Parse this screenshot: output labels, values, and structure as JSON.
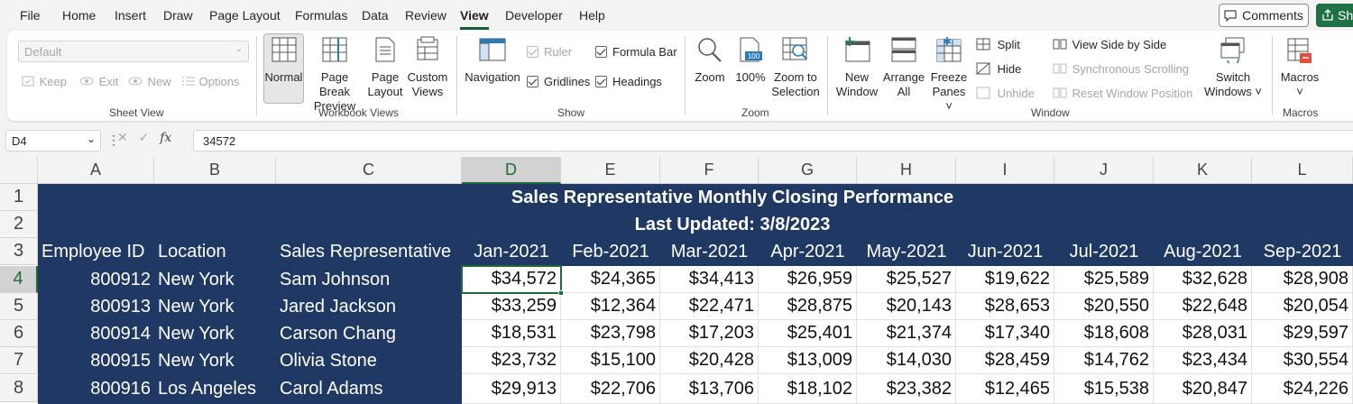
{
  "menu": {
    "items": [
      "File",
      "Home",
      "Insert",
      "Draw",
      "Page Layout",
      "Formulas",
      "Data",
      "Review",
      "View",
      "Developer",
      "Help"
    ],
    "active": "View",
    "comments_label": "Comments",
    "share_label": "Sh"
  },
  "ribbon": {
    "sheet_view": {
      "dropdown_value": "Default",
      "keep": "Keep",
      "exit": "Exit",
      "new": "New",
      "options": "Options",
      "label": "Sheet View"
    },
    "workbook_views": {
      "normal": "Normal",
      "page_break_1": "Page Break",
      "page_break_2": "Preview",
      "page_layout_1": "Page",
      "page_layout_2": "Layout",
      "custom_1": "Custom",
      "custom_2": "Views",
      "label": "Workbook Views"
    },
    "show": {
      "navigation": "Navigation",
      "ruler": "Ruler",
      "formula_bar": "Formula Bar",
      "gridlines": "Gridlines",
      "headings": "Headings",
      "label": "Show"
    },
    "zoom": {
      "zoom": "Zoom",
      "hundred": "100%",
      "hundred_icon": "100",
      "zoom_sel_1": "Zoom to",
      "zoom_sel_2": "Selection",
      "label": "Zoom"
    },
    "window": {
      "new_window_1": "New",
      "new_window_2": "Window",
      "arrange_1": "Arrange",
      "arrange_2": "All",
      "freeze_1": "Freeze",
      "freeze_2": "Panes ˅",
      "split": "Split",
      "hide": "Hide",
      "unhide": "Unhide",
      "side_by_side": "View Side by Side",
      "sync_scroll": "Synchronous Scrolling",
      "reset_pos": "Reset Window Position",
      "switch_1": "Switch",
      "switch_2": "Windows ˅",
      "label": "Window"
    },
    "macros": {
      "macros_1": "Macros",
      "macros_2": "˅",
      "label": "Macros"
    }
  },
  "formula_bar": {
    "name_box": "D4",
    "value": "34572"
  },
  "sheet": {
    "columns": [
      "A",
      "B",
      "C",
      "D",
      "E",
      "F",
      "G",
      "H",
      "I",
      "J",
      "K",
      "L"
    ],
    "rows": [
      "1",
      "2",
      "3",
      "4",
      "5",
      "6",
      "7",
      "8"
    ],
    "title": "Sales Representative Monthly Closing Performance",
    "subtitle": "Last Updated: 3/8/2023",
    "headers": [
      "Employee ID",
      "Location",
      "Sales Representative"
    ],
    "months": [
      "Jan-2021",
      "Feb-2021",
      "Mar-2021",
      "Apr-2021",
      "May-2021",
      "Jun-2021",
      "Jul-2021",
      "Aug-2021",
      "Sep-2021"
    ],
    "data": [
      {
        "id": "800912",
        "loc": "New York",
        "rep": "Sam Johnson",
        "vals": [
          "$34,572",
          "$24,365",
          "$34,413",
          "$26,959",
          "$25,527",
          "$19,622",
          "$25,589",
          "$32,628",
          "$28,908"
        ]
      },
      {
        "id": "800913",
        "loc": "New York",
        "rep": "Jared Jackson",
        "vals": [
          "$33,259",
          "$12,364",
          "$22,471",
          "$28,875",
          "$20,143",
          "$28,653",
          "$20,550",
          "$22,648",
          "$20,054"
        ]
      },
      {
        "id": "800914",
        "loc": "New York",
        "rep": "Carson Chang",
        "vals": [
          "$18,531",
          "$23,798",
          "$17,203",
          "$25,401",
          "$21,374",
          "$17,340",
          "$18,608",
          "$28,031",
          "$29,597"
        ]
      },
      {
        "id": "800915",
        "loc": "New York",
        "rep": "Olivia Stone",
        "vals": [
          "$23,732",
          "$15,100",
          "$20,428",
          "$13,009",
          "$14,030",
          "$28,459",
          "$14,762",
          "$23,434",
          "$30,554"
        ]
      },
      {
        "id": "800916",
        "loc": "Los Angeles",
        "rep": "Carol Adams",
        "vals": [
          "$29,913",
          "$22,706",
          "$13,706",
          "$18,102",
          "$23,382",
          "$12,465",
          "$15,538",
          "$20,847",
          "$24,226"
        ]
      }
    ]
  },
  "colors": {
    "header_fill": "#203864",
    "accent": "#1d6b3b"
  }
}
